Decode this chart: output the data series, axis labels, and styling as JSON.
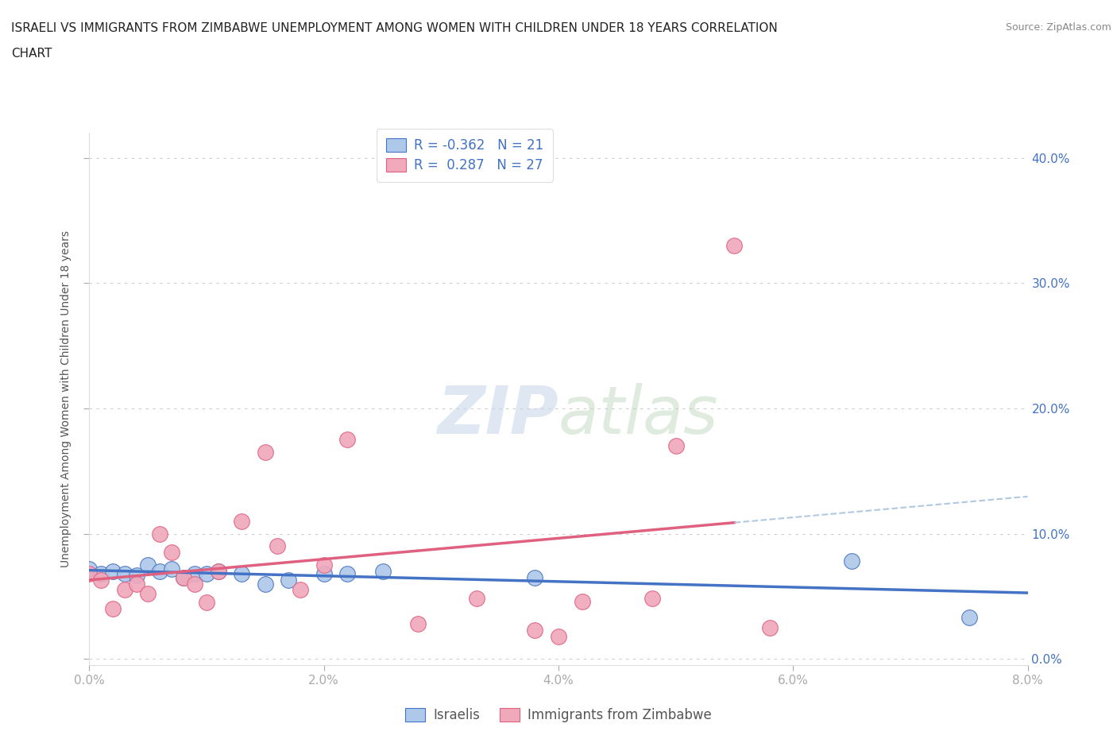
{
  "title_line1": "ISRAELI VS IMMIGRANTS FROM ZIMBABWE UNEMPLOYMENT AMONG WOMEN WITH CHILDREN UNDER 18 YEARS CORRELATION",
  "title_line2": "CHART",
  "source": "Source: ZipAtlas.com",
  "ylabel": "Unemployment Among Women with Children Under 18 years",
  "r1": -0.362,
  "n1": 21,
  "r2": 0.287,
  "n2": 27,
  "color_blue": "#adc8e8",
  "color_pink": "#f0a8bb",
  "line_color_blue": "#4472c4",
  "line_color_pink": "#e06080",
  "line_color_dashed": "#b0c8e0",
  "xlim": [
    0.0,
    0.08
  ],
  "ylim": [
    -0.005,
    0.42
  ],
  "xticks": [
    0.0,
    0.02,
    0.04,
    0.06,
    0.08
  ],
  "yticks": [
    0.0,
    0.1,
    0.2,
    0.3,
    0.4
  ],
  "legend_label1": "Israelis",
  "legend_label2": "Immigrants from Zimbabwe",
  "israelis_x": [
    0.0,
    0.001,
    0.002,
    0.003,
    0.004,
    0.005,
    0.006,
    0.007,
    0.008,
    0.009,
    0.01,
    0.011,
    0.013,
    0.015,
    0.017,
    0.02,
    0.022,
    0.025,
    0.038,
    0.065,
    0.075
  ],
  "israelis_y": [
    0.072,
    0.068,
    0.07,
    0.068,
    0.067,
    0.075,
    0.07,
    0.072,
    0.065,
    0.068,
    0.068,
    0.07,
    0.068,
    0.06,
    0.063,
    0.068,
    0.068,
    0.07,
    0.065,
    0.078,
    0.033
  ],
  "zimbabwe_x": [
    0.0,
    0.001,
    0.002,
    0.003,
    0.004,
    0.005,
    0.006,
    0.007,
    0.008,
    0.009,
    0.01,
    0.011,
    0.013,
    0.015,
    0.016,
    0.018,
    0.02,
    0.022,
    0.028,
    0.033,
    0.038,
    0.04,
    0.042,
    0.048,
    0.05,
    0.055,
    0.058
  ],
  "zimbabwe_y": [
    0.068,
    0.063,
    0.04,
    0.055,
    0.06,
    0.052,
    0.1,
    0.085,
    0.065,
    0.06,
    0.045,
    0.07,
    0.11,
    0.165,
    0.09,
    0.055,
    0.075,
    0.175,
    0.028,
    0.048,
    0.023,
    0.018,
    0.046,
    0.048,
    0.17,
    0.33,
    0.025
  ]
}
